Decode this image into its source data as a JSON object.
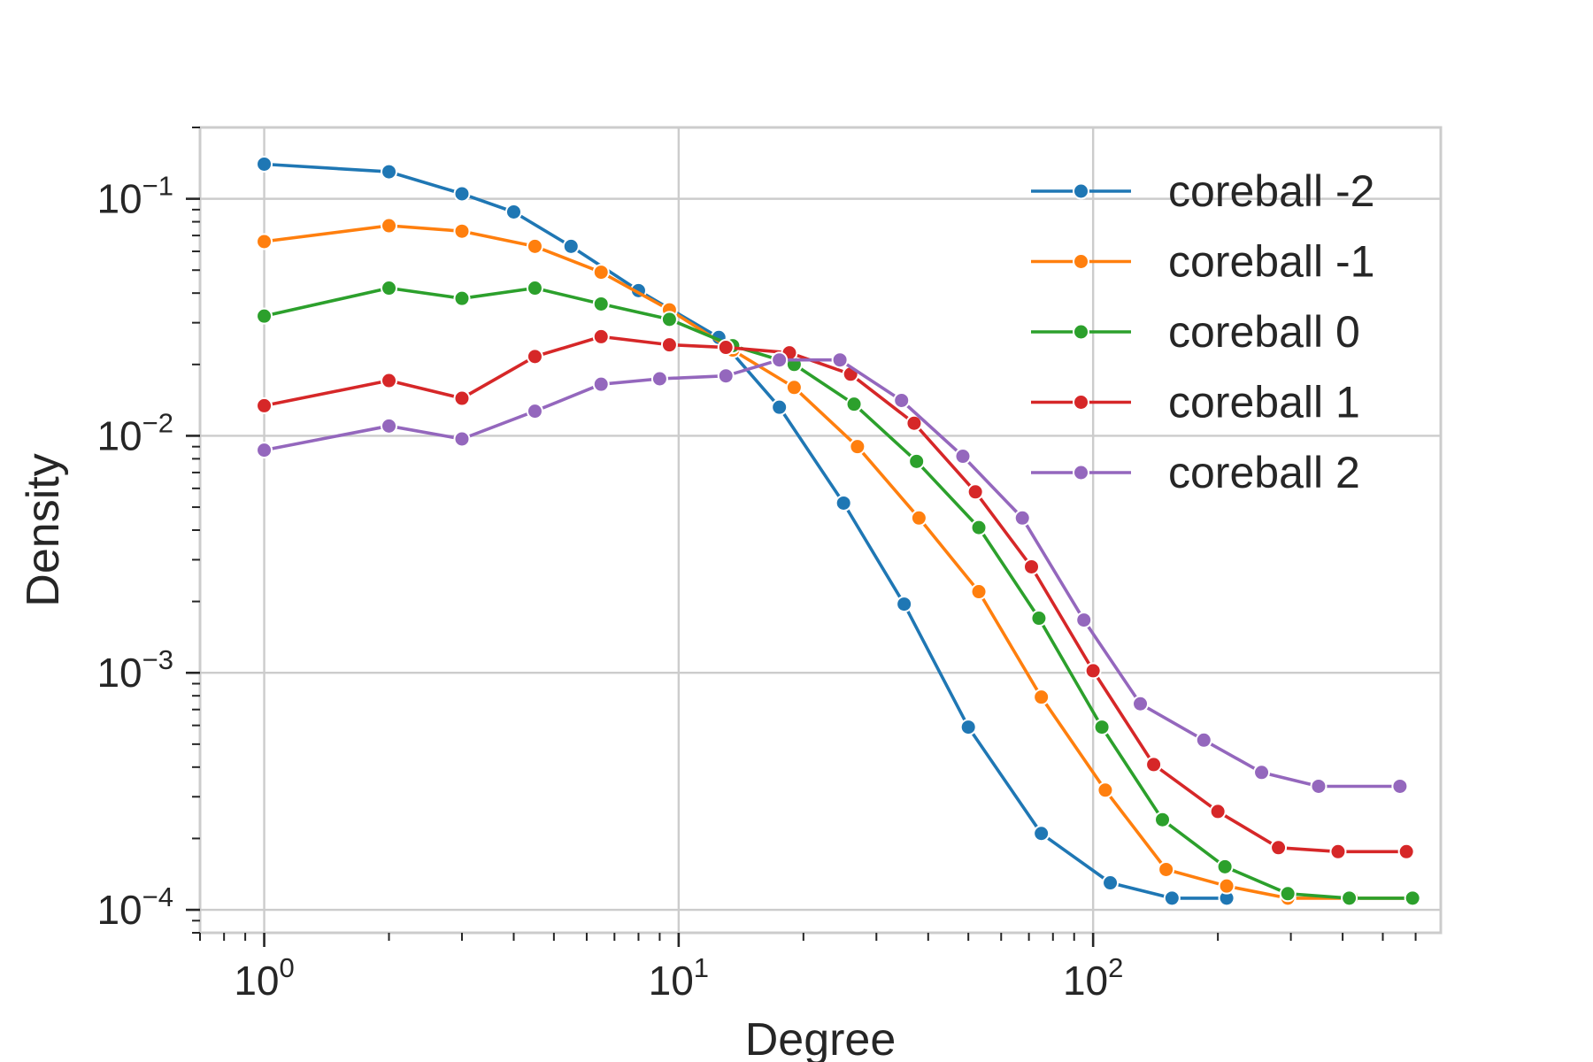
{
  "chart_data": {
    "type": "line",
    "xscale": "log",
    "yscale": "log",
    "xlabel": "Degree",
    "ylabel": "Density",
    "xlim": [
      0.7,
      690
    ],
    "ylim": [
      8e-05,
      0.2
    ],
    "x_ticks": [
      {
        "base": "10",
        "exp": "0",
        "value": 1
      },
      {
        "base": "10",
        "exp": "1",
        "value": 10
      },
      {
        "base": "10",
        "exp": "2",
        "value": 100
      }
    ],
    "y_ticks": [
      {
        "base": "10",
        "exp": "−1",
        "value": 0.1
      },
      {
        "base": "10",
        "exp": "−2",
        "value": 0.01
      },
      {
        "base": "10",
        "exp": "−3",
        "value": 0.001
      },
      {
        "base": "10",
        "exp": "−4",
        "value": 0.0001
      }
    ],
    "grid": true,
    "legend_position": "top-right",
    "series": [
      {
        "name": "coreball -2",
        "color": "#1f77b4",
        "x": [
          1,
          2,
          3,
          4,
          5.5,
          8,
          12.5,
          17.5,
          25,
          35,
          50,
          75,
          110,
          155,
          210
        ],
        "y": [
          0.14,
          0.13,
          0.105,
          0.088,
          0.063,
          0.041,
          0.026,
          0.0132,
          0.0052,
          0.00195,
          0.00059,
          0.00021,
          0.00013,
          0.000112,
          0.000112
        ]
      },
      {
        "name": "coreball -1",
        "color": "#ff7f0e",
        "x": [
          1,
          2,
          3,
          4.5,
          6.5,
          9.5,
          13.5,
          19,
          27,
          38,
          53,
          75,
          107,
          150,
          210,
          295,
          420,
          590
        ],
        "y": [
          0.066,
          0.077,
          0.073,
          0.063,
          0.049,
          0.034,
          0.023,
          0.016,
          0.009,
          0.0045,
          0.0022,
          0.00079,
          0.00032,
          0.000148,
          0.000126,
          0.000112,
          0.000112,
          0.000112
        ]
      },
      {
        "name": "coreball 0",
        "color": "#2ca02c",
        "x": [
          1,
          2,
          3,
          4.5,
          6.5,
          9.5,
          13.5,
          19,
          26.5,
          37.5,
          53,
          74,
          105,
          147,
          208,
          295,
          415,
          590
        ],
        "y": [
          0.032,
          0.042,
          0.038,
          0.042,
          0.036,
          0.031,
          0.024,
          0.02,
          0.0136,
          0.0078,
          0.0041,
          0.0017,
          0.00059,
          0.00024,
          0.000152,
          0.000117,
          0.000112,
          0.000112
        ]
      },
      {
        "name": "coreball 1",
        "color": "#d62728",
        "x": [
          1,
          2,
          3,
          4.5,
          6.5,
          9.5,
          13,
          18.5,
          26,
          37,
          52,
          71,
          100,
          140,
          200,
          280,
          390,
          570
        ],
        "y": [
          0.0134,
          0.0171,
          0.0144,
          0.0216,
          0.0262,
          0.0242,
          0.0236,
          0.0224,
          0.0182,
          0.0113,
          0.0058,
          0.0028,
          0.00102,
          0.00041,
          0.00026,
          0.000183,
          0.000176,
          0.000176
        ]
      },
      {
        "name": "coreball 2",
        "color": "#9467bd",
        "x": [
          1,
          2,
          3,
          4.5,
          6.5,
          9,
          13,
          17.5,
          24.5,
          34.5,
          48.5,
          67.5,
          95,
          130,
          185,
          255,
          350,
          550
        ],
        "y": [
          0.0087,
          0.011,
          0.0097,
          0.0127,
          0.0165,
          0.0174,
          0.0179,
          0.0209,
          0.0209,
          0.0141,
          0.0082,
          0.0045,
          0.00167,
          0.00074,
          0.00052,
          0.00038,
          0.000332,
          0.000332
        ]
      }
    ]
  }
}
